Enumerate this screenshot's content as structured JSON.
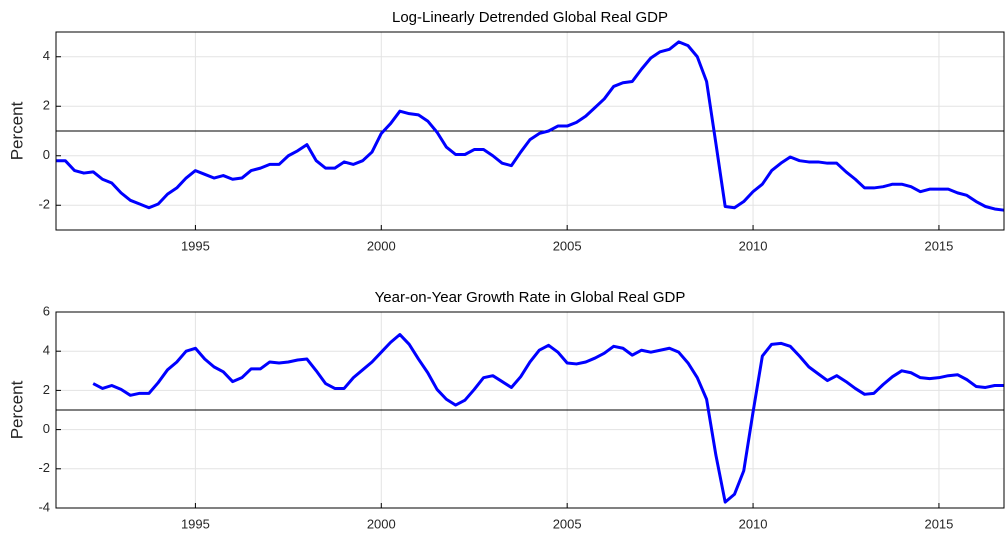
{
  "chart_data": [
    {
      "type": "line",
      "title": "Log-Linearly Detrended Global Real GDP",
      "y_label": "Percent",
      "xlim": [
        1991.25,
        2016.75
      ],
      "xticks": [
        1995,
        2000,
        2005,
        2010,
        2015
      ],
      "ylim": [
        -3,
        5
      ],
      "yticks": [
        -2,
        0,
        2,
        4
      ],
      "grid": true,
      "reference_line": 1,
      "x": [
        1991.25,
        1991.5,
        1991.75,
        1992,
        1992.25,
        1992.5,
        1992.75,
        1993,
        1993.25,
        1993.5,
        1993.75,
        1994,
        1994.25,
        1994.5,
        1994.75,
        1995,
        1995.25,
        1995.5,
        1995.75,
        1996,
        1996.25,
        1996.5,
        1996.75,
        1997,
        1997.25,
        1997.5,
        1997.75,
        1998,
        1998.25,
        1998.5,
        1998.75,
        1999,
        1999.25,
        1999.5,
        1999.75,
        2000,
        2000.25,
        2000.5,
        2000.75,
        2001,
        2001.25,
        2001.5,
        2001.75,
        2002,
        2002.25,
        2002.5,
        2002.75,
        2003,
        2003.25,
        2003.5,
        2003.75,
        2004,
        2004.25,
        2004.5,
        2004.75,
        2005,
        2005.25,
        2005.5,
        2005.75,
        2006,
        2006.25,
        2006.5,
        2006.75,
        2007,
        2007.25,
        2007.5,
        2007.75,
        2008,
        2008.25,
        2008.5,
        2008.75,
        2009,
        2009.25,
        2009.5,
        2009.75,
        2010,
        2010.25,
        2010.5,
        2010.75,
        2011,
        2011.25,
        2011.5,
        2011.75,
        2012,
        2012.25,
        2012.5,
        2012.75,
        2013,
        2013.25,
        2013.5,
        2013.75,
        2014,
        2014.25,
        2014.5,
        2014.75,
        2015,
        2015.25,
        2015.5,
        2015.75,
        2016,
        2016.25,
        2016.5,
        2016.75
      ],
      "series": [
        {
          "color": "#0000ff",
          "values": [
            -0.2,
            -0.2,
            -0.6,
            -0.7,
            -0.65,
            -0.95,
            -1.1,
            -1.5,
            -1.8,
            -1.95,
            -2.1,
            -1.95,
            -1.55,
            -1.3,
            -0.9,
            -0.6,
            -0.75,
            -0.9,
            -0.8,
            -0.95,
            -0.9,
            -0.6,
            -0.5,
            -0.35,
            -0.35,
            0.0,
            0.2,
            0.45,
            -0.2,
            -0.5,
            -0.5,
            -0.25,
            -0.35,
            -0.2,
            0.15,
            0.9,
            1.3,
            1.8,
            1.7,
            1.65,
            1.4,
            0.95,
            0.35,
            0.05,
            0.05,
            0.25,
            0.25,
            0.0,
            -0.3,
            -0.4,
            0.15,
            0.65,
            0.9,
            1.0,
            1.2,
            1.2,
            1.35,
            1.6,
            1.95,
            2.3,
            2.8,
            2.95,
            3.0,
            3.5,
            3.95,
            4.2,
            4.3,
            4.6,
            4.45,
            4.0,
            3.0,
            0.5,
            -2.05,
            -2.1,
            -1.85,
            -1.45,
            -1.15,
            -0.6,
            -0.3,
            -0.05,
            -0.2,
            -0.25,
            -0.25,
            -0.3,
            -0.3,
            -0.65,
            -0.95,
            -1.3,
            -1.3,
            -1.25,
            -1.15,
            -1.15,
            -1.25,
            -1.45,
            -1.35,
            -1.35,
            -1.35,
            -1.5,
            -1.6,
            -1.85,
            -2.05,
            -2.15,
            -2.2
          ]
        }
      ]
    },
    {
      "type": "line",
      "title": "Year-on-Year Growth Rate in Global Real GDP",
      "y_label": "Percent",
      "xlim": [
        1991.25,
        2016.75
      ],
      "xticks": [
        1995,
        2000,
        2005,
        2010,
        2015
      ],
      "ylim": [
        -4,
        6
      ],
      "yticks": [
        -4,
        -2,
        0,
        2,
        4,
        6
      ],
      "grid": true,
      "reference_line": 1,
      "x": [
        1992.25,
        1992.5,
        1992.75,
        1993,
        1993.25,
        1993.5,
        1993.75,
        1994,
        1994.25,
        1994.5,
        1994.75,
        1995,
        1995.25,
        1995.5,
        1995.75,
        1996,
        1996.25,
        1996.5,
        1996.75,
        1997,
        1997.25,
        1997.5,
        1997.75,
        1998,
        1998.25,
        1998.5,
        1998.75,
        1999,
        1999.25,
        1999.5,
        1999.75,
        2000,
        2000.25,
        2000.5,
        2000.75,
        2001,
        2001.25,
        2001.5,
        2001.75,
        2002,
        2002.25,
        2002.5,
        2002.75,
        2003,
        2003.25,
        2003.5,
        2003.75,
        2004,
        2004.25,
        2004.5,
        2004.75,
        2005,
        2005.25,
        2005.5,
        2005.75,
        2006,
        2006.25,
        2006.5,
        2006.75,
        2007,
        2007.25,
        2007.5,
        2007.75,
        2008,
        2008.25,
        2008.5,
        2008.75,
        2009,
        2009.25,
        2009.5,
        2009.75,
        2010,
        2010.25,
        2010.5,
        2010.75,
        2011,
        2011.25,
        2011.5,
        2011.75,
        2012,
        2012.25,
        2012.5,
        2012.75,
        2013,
        2013.25,
        2013.5,
        2013.75,
        2014,
        2014.25,
        2014.5,
        2014.75,
        2015,
        2015.25,
        2015.5,
        2015.75,
        2016,
        2016.25,
        2016.5,
        2016.75
      ],
      "series": [
        {
          "color": "#0000ff",
          "values": [
            2.35,
            2.1,
            2.25,
            2.05,
            1.75,
            1.85,
            1.85,
            2.4,
            3.05,
            3.45,
            4.0,
            4.15,
            3.6,
            3.2,
            2.95,
            2.45,
            2.65,
            3.1,
            3.1,
            3.45,
            3.4,
            3.45,
            3.55,
            3.6,
            3.0,
            2.35,
            2.1,
            2.1,
            2.65,
            3.05,
            3.45,
            3.95,
            4.45,
            4.85,
            4.35,
            3.6,
            2.9,
            2.05,
            1.55,
            1.25,
            1.5,
            2.05,
            2.65,
            2.75,
            2.45,
            2.15,
            2.7,
            3.45,
            4.05,
            4.3,
            3.95,
            3.4,
            3.35,
            3.45,
            3.65,
            3.9,
            4.25,
            4.15,
            3.8,
            4.05,
            3.95,
            4.05,
            4.15,
            3.95,
            3.4,
            2.65,
            1.55,
            -1.3,
            -3.7,
            -3.3,
            -2.1,
            0.9,
            3.75,
            4.35,
            4.4,
            4.25,
            3.75,
            3.2,
            2.85,
            2.5,
            2.75,
            2.45,
            2.1,
            1.8,
            1.85,
            2.3,
            2.7,
            3.0,
            2.9,
            2.65,
            2.6,
            2.65,
            2.75,
            2.8,
            2.55,
            2.2,
            2.15,
            2.25,
            2.25
          ]
        }
      ]
    }
  ]
}
